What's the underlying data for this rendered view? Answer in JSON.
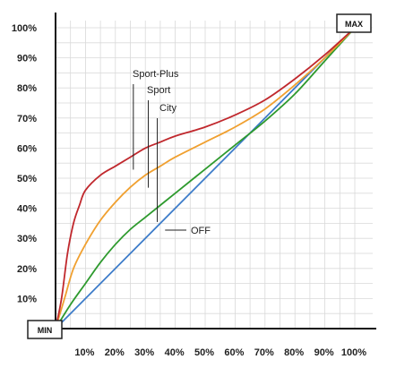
{
  "chart_data": {
    "type": "line",
    "title": "",
    "xlabel": "",
    "ylabel": "",
    "xlim": [
      0,
      100
    ],
    "ylim": [
      0,
      100
    ],
    "grid": true,
    "x_ticks": [
      "10%",
      "20%",
      "30%",
      "40%",
      "50%",
      "60%",
      "70%",
      "80%",
      "90%",
      "100%"
    ],
    "y_ticks": [
      "10%",
      "20%",
      "30%",
      "40%",
      "50%",
      "60%",
      "70%",
      "80%",
      "90%",
      "100%"
    ],
    "corner_labels": {
      "min": "MIN",
      "max": "MAX"
    },
    "series": [
      {
        "name": "Sport-Plus",
        "color": "#c0282d",
        "points": [
          [
            0,
            0
          ],
          [
            2,
            10
          ],
          [
            4,
            25
          ],
          [
            6,
            35
          ],
          [
            8,
            41
          ],
          [
            10,
            46
          ],
          [
            15,
            51
          ],
          [
            20,
            54
          ],
          [
            25,
            57
          ],
          [
            30,
            60
          ],
          [
            35,
            62
          ],
          [
            40,
            64
          ],
          [
            50,
            67
          ],
          [
            60,
            71
          ],
          [
            70,
            76
          ],
          [
            80,
            83
          ],
          [
            90,
            91
          ],
          [
            100,
            100
          ]
        ]
      },
      {
        "name": "Sport",
        "color": "#f0a030",
        "points": [
          [
            0,
            0
          ],
          [
            3,
            10
          ],
          [
            6,
            20
          ],
          [
            10,
            28
          ],
          [
            15,
            36
          ],
          [
            20,
            42
          ],
          [
            25,
            47
          ],
          [
            30,
            51
          ],
          [
            35,
            54
          ],
          [
            40,
            57
          ],
          [
            50,
            62
          ],
          [
            60,
            67
          ],
          [
            70,
            73
          ],
          [
            80,
            81
          ],
          [
            90,
            90
          ],
          [
            100,
            100
          ]
        ]
      },
      {
        "name": "City",
        "color": "#2e9a2e",
        "points": [
          [
            0,
            0
          ],
          [
            5,
            8
          ],
          [
            10,
            15
          ],
          [
            15,
            22
          ],
          [
            20,
            28
          ],
          [
            25,
            33
          ],
          [
            30,
            37
          ],
          [
            35,
            41
          ],
          [
            40,
            45
          ],
          [
            50,
            53
          ],
          [
            60,
            61
          ],
          [
            70,
            69
          ],
          [
            80,
            78
          ],
          [
            90,
            89
          ],
          [
            100,
            100
          ]
        ]
      },
      {
        "name": "OFF",
        "color": "#3d7cc9",
        "points": [
          [
            0,
            0
          ],
          [
            100,
            100
          ]
        ]
      }
    ],
    "annotations": [
      {
        "text": "Sport-Plus",
        "x": 26,
        "y": 60
      },
      {
        "text": "Sport",
        "x": 31,
        "y": 54
      },
      {
        "text": "City",
        "x": 34,
        "y": 48
      },
      {
        "text": "OFF",
        "x": 36,
        "y": 33
      }
    ]
  }
}
